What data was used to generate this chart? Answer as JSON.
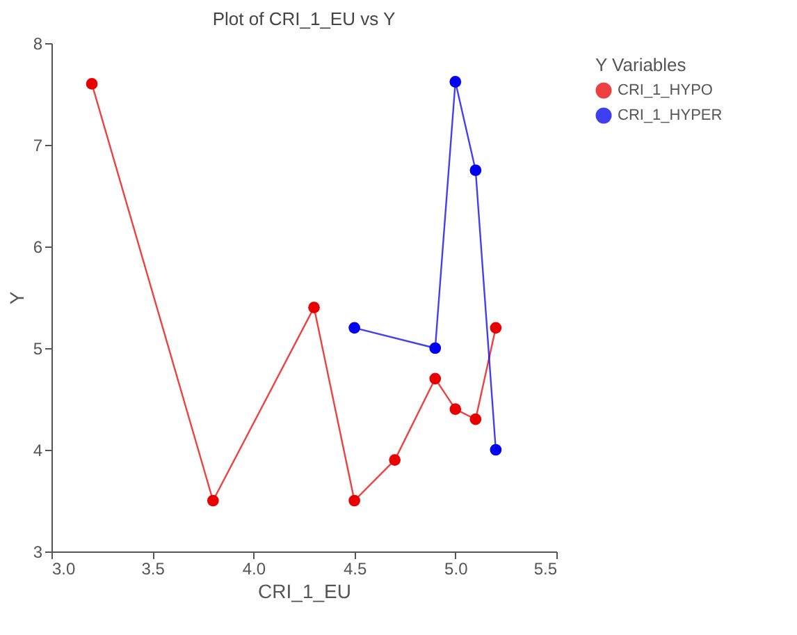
{
  "chart_data": {
    "type": "line",
    "title": "Plot of CRI_1_EU vs Y",
    "xlabel": "CRI_1_EU",
    "ylabel": "Y",
    "legend_title": "Y Variables",
    "xlim": [
      3.0,
      5.5
    ],
    "xticks": [
      {
        "value": 3.0,
        "label": "3.0"
      },
      {
        "value": 3.5,
        "label": "3.5"
      },
      {
        "value": 4.0,
        "label": "4.0"
      },
      {
        "value": 4.5,
        "label": "4.5"
      },
      {
        "value": 5.0,
        "label": "5.0"
      },
      {
        "value": 5.5,
        "label": "5.5"
      }
    ],
    "ylim": [
      3,
      8
    ],
    "yticks": [
      3,
      4,
      5,
      6,
      7,
      8
    ],
    "grid": false,
    "legend": "right",
    "marker": "circle",
    "line_style": "solid",
    "series": [
      {
        "name": "CRI_1_HYPO",
        "color": "#e80000",
        "x": [
          3.2,
          3.8,
          4.3,
          4.5,
          4.7,
          4.9,
          5.0,
          5.1,
          5.2
        ],
        "values": [
          7.6,
          3.5,
          5.4,
          3.5,
          3.9,
          4.7,
          4.4,
          4.3,
          5.2
        ]
      },
      {
        "name": "CRI_1_HYPER",
        "color": "#0000ee",
        "x": [
          4.5,
          4.9,
          5.0,
          5.1,
          5.2
        ],
        "values": [
          5.2,
          5.0,
          7.62,
          6.75,
          4.0
        ]
      }
    ]
  }
}
